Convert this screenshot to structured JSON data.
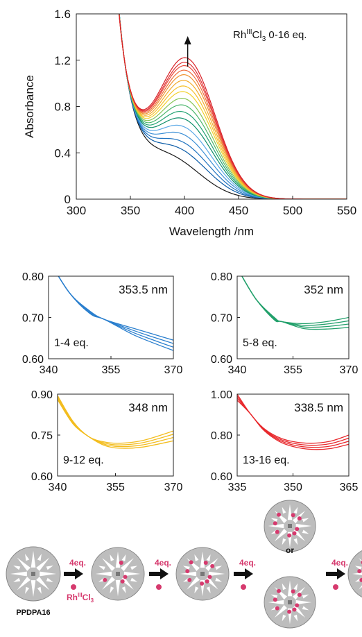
{
  "chart_data": [
    {
      "type": "line",
      "ylabel": "Absorbance",
      "xlabel": "Wavelength /nm",
      "xlim": [
        300,
        550
      ],
      "ylim": [
        0,
        1.6
      ],
      "xticks": [
        "300",
        "350",
        "400",
        "450",
        "500",
        "550"
      ],
      "yticks": [
        "0",
        "0.4",
        "0.8",
        "1.2",
        "1.6"
      ],
      "annotation": {
        "prefix": "Rh",
        "sup": "III",
        "mid": "Cl",
        "sub": "3",
        "suffix": " 0-16 eq."
      },
      "arrow": "increasing absorbance at 405 nm",
      "isosbestic_points": [
        {
          "wavelength": 353.5,
          "range": "1-4 eq."
        },
        {
          "wavelength": 352,
          "range": "5-8 eq."
        },
        {
          "wavelength": 348,
          "range": "9-12 eq."
        },
        {
          "wavelength": 338.5,
          "range": "13-16 eq."
        }
      ],
      "series": [
        {
          "eq": 0,
          "color": "#1a1a1a",
          "peak": 0.0
        },
        {
          "eq": 1,
          "color": "#0b5ca8",
          "peak": 0.1
        },
        {
          "eq": 2,
          "color": "#1f73c0",
          "peak": 0.17
        },
        {
          "eq": 3,
          "color": "#3b8fd6",
          "peak": 0.24
        },
        {
          "eq": 4,
          "color": "#5aa8e6",
          "peak": 0.31
        },
        {
          "eq": 5,
          "color": "#0f8f6a",
          "peak": 0.38
        },
        {
          "eq": 6,
          "color": "#23a372",
          "peak": 0.44
        },
        {
          "eq": 7,
          "color": "#4bb66c",
          "peak": 0.5
        },
        {
          "eq": 8,
          "color": "#86c455",
          "peak": 0.56
        },
        {
          "eq": 9,
          "color": "#f2d02a",
          "peak": 0.62
        },
        {
          "eq": 10,
          "color": "#f6c02c",
          "peak": 0.67
        },
        {
          "eq": 11,
          "color": "#f3ab2c",
          "peak": 0.72
        },
        {
          "eq": 12,
          "color": "#ef9230",
          "peak": 0.77
        },
        {
          "eq": 13,
          "color": "#ef6b3a",
          "peak": 0.81
        },
        {
          "eq": 14,
          "color": "#e94a3c",
          "peak": 0.85
        },
        {
          "eq": 15,
          "color": "#e03236",
          "peak": 0.88
        },
        {
          "eq": 16,
          "color": "#d82127",
          "peak": 0.92
        }
      ]
    },
    {
      "type": "line",
      "title": "353.5 nm",
      "label": "1-4 eq.",
      "xlim": [
        340,
        370
      ],
      "ylim": [
        0.6,
        0.8
      ],
      "xticks": [
        "340",
        "355",
        "370"
      ],
      "yticks": [
        "0.60",
        "0.70",
        "0.80"
      ],
      "color": "#2a7fce",
      "series": [
        {
          "x": [
            340,
            345,
            350,
            353.5,
            360,
            365,
            370
          ],
          "y": [
            0.84,
            0.76,
            0.715,
            0.695,
            0.675,
            0.66,
            0.645
          ]
        },
        {
          "x": [
            340,
            345,
            350,
            353.5,
            360,
            365,
            370
          ],
          "y": [
            0.84,
            0.76,
            0.713,
            0.695,
            0.67,
            0.653,
            0.637
          ]
        },
        {
          "x": [
            340,
            345,
            350,
            353.5,
            360,
            365,
            370
          ],
          "y": [
            0.84,
            0.76,
            0.711,
            0.695,
            0.665,
            0.646,
            0.628
          ]
        },
        {
          "x": [
            340,
            345,
            350,
            353.5,
            360,
            365,
            370
          ],
          "y": [
            0.84,
            0.76,
            0.709,
            0.695,
            0.66,
            0.639,
            0.62
          ]
        }
      ]
    },
    {
      "type": "line",
      "title": "352 nm",
      "label": "5-8 eq.",
      "xlim": [
        340,
        370
      ],
      "ylim": [
        0.6,
        0.8
      ],
      "xticks": [
        "340",
        "355",
        "370"
      ],
      "yticks": [
        "0.60",
        "0.70",
        "0.80"
      ],
      "color": "#22a06b",
      "series": [
        {
          "x": [
            340,
            345,
            350,
            352,
            358,
            364,
            370
          ],
          "y": [
            0.82,
            0.745,
            0.7,
            0.69,
            0.685,
            0.69,
            0.7
          ]
        },
        {
          "x": [
            340,
            345,
            350,
            352,
            358,
            364,
            370
          ],
          "y": [
            0.82,
            0.745,
            0.698,
            0.69,
            0.681,
            0.684,
            0.692
          ]
        },
        {
          "x": [
            340,
            345,
            350,
            352,
            358,
            364,
            370
          ],
          "y": [
            0.82,
            0.745,
            0.696,
            0.69,
            0.677,
            0.678,
            0.684
          ]
        },
        {
          "x": [
            340,
            345,
            350,
            352,
            358,
            364,
            370
          ],
          "y": [
            0.82,
            0.745,
            0.694,
            0.69,
            0.673,
            0.672,
            0.676
          ]
        }
      ]
    },
    {
      "type": "line",
      "title": "348 nm",
      "label": "9-12 eq.",
      "xlim": [
        340,
        370
      ],
      "ylim": [
        0.6,
        0.9
      ],
      "xticks": [
        "340",
        "355",
        "370"
      ],
      "yticks": [
        "0.60",
        "0.75",
        "0.90"
      ],
      "color": "#f3bd1f",
      "series": [
        {
          "x": [
            340,
            344,
            348,
            352,
            356,
            362,
            370
          ],
          "y": [
            0.895,
            0.8,
            0.745,
            0.725,
            0.72,
            0.73,
            0.765
          ]
        },
        {
          "x": [
            340,
            344,
            348,
            352,
            356,
            362,
            370
          ],
          "y": [
            0.89,
            0.797,
            0.745,
            0.721,
            0.714,
            0.722,
            0.753
          ]
        },
        {
          "x": [
            340,
            344,
            348,
            352,
            356,
            362,
            370
          ],
          "y": [
            0.885,
            0.794,
            0.745,
            0.717,
            0.708,
            0.714,
            0.741
          ]
        },
        {
          "x": [
            340,
            344,
            348,
            352,
            356,
            362,
            370
          ],
          "y": [
            0.88,
            0.791,
            0.745,
            0.713,
            0.702,
            0.706,
            0.729
          ]
        }
      ]
    },
    {
      "type": "line",
      "title": "338.5 nm",
      "label": "13-16 eq.",
      "xlim": [
        335,
        365
      ],
      "ylim": [
        0.6,
        1.0
      ],
      "xticks": [
        "335",
        "350",
        "365"
      ],
      "yticks": [
        "0.60",
        "0.80",
        "1.00"
      ],
      "color": "#e8282c",
      "series": [
        {
          "x": [
            335,
            338.5,
            342,
            346,
            350,
            355,
            360,
            365
          ],
          "y": [
            1.0,
            0.905,
            0.835,
            0.79,
            0.768,
            0.76,
            0.77,
            0.8
          ]
        },
        {
          "x": [
            335,
            338.5,
            342,
            346,
            350,
            355,
            360,
            365
          ],
          "y": [
            0.99,
            0.905,
            0.832,
            0.784,
            0.76,
            0.75,
            0.758,
            0.785
          ]
        },
        {
          "x": [
            335,
            338.5,
            342,
            346,
            350,
            355,
            360,
            365
          ],
          "y": [
            0.98,
            0.905,
            0.829,
            0.778,
            0.752,
            0.74,
            0.746,
            0.77
          ]
        },
        {
          "x": [
            335,
            338.5,
            342,
            346,
            350,
            355,
            360,
            365
          ],
          "y": [
            0.97,
            0.905,
            0.826,
            0.772,
            0.744,
            0.73,
            0.734,
            0.755
          ]
        }
      ]
    }
  ],
  "scheme": {
    "step_label": "4eq.",
    "reagent": {
      "prefix": "Rh",
      "sup": "III",
      "suffix": "Cl",
      "sub": "3"
    },
    "start_label": "PPDPA16",
    "or_label": "or",
    "steps": [
      {
        "rh_count": 0
      },
      {
        "rh_count": 4
      },
      {
        "rh_count": 8
      },
      {
        "rh_count": 12
      },
      {
        "rh_count": 16
      }
    ],
    "colors": {
      "disc": "#bdbdbd",
      "star": "#ffffff",
      "rh": "#d63a6e",
      "arrow": "#111111",
      "label": "#d63a6e"
    }
  }
}
